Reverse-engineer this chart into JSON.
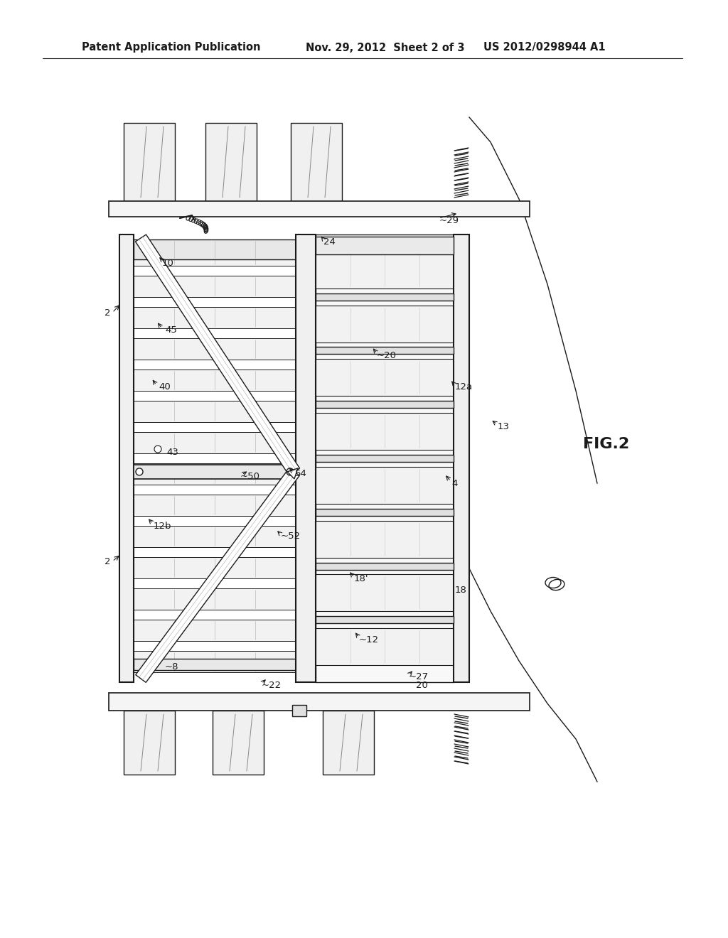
{
  "title_left": "Patent Application Publication",
  "title_mid": "Nov. 29, 2012  Sheet 2 of 3",
  "title_right": "US 2012/0298944 A1",
  "fig_label": "FIG.2",
  "bg_color": "#ffffff",
  "lc": "#1a1a1a"
}
